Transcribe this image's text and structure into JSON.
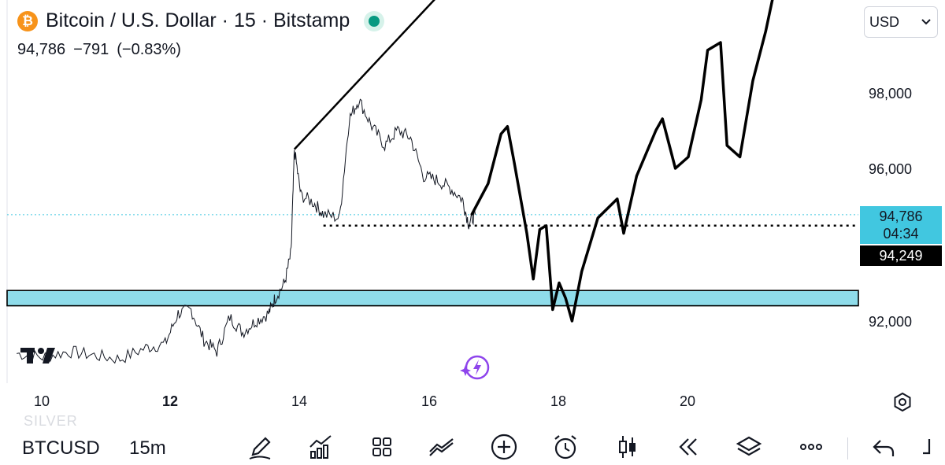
{
  "header": {
    "title": "Bitcoin / U.S. Dollar · 15 · Bitstamp",
    "coin_symbol": "₿",
    "price": "94,786",
    "change": "−791",
    "change_pct": "(−0.83%)",
    "live_color": "#089981"
  },
  "currency_select": {
    "value": "USD",
    "icon": "chevron-down-icon"
  },
  "price_axis": {
    "labels": [
      "98,000",
      "96,000",
      "92,000"
    ],
    "current_price": "94,786",
    "countdown": "04:34",
    "hline_price": "94,249",
    "current_tag_color": "#41c7e0"
  },
  "time_axis": {
    "labels": [
      "10",
      "12",
      "14",
      "16",
      "18",
      "20"
    ],
    "bold_label": "12"
  },
  "watermark": "SILVER",
  "bottom_bar": {
    "symbol": "BTCUSD",
    "interval": "15m",
    "tools": [
      "drawing-pen-icon",
      "indicators-icon",
      "layout-grid-icon",
      "compare-icon",
      "add-circle-icon",
      "alarm-icon",
      "candles-icon",
      "replay-icon",
      "layers-icon",
      "more-icon",
      "undo-icon"
    ]
  },
  "chart_data": {
    "type": "line",
    "symbol": "BTCUSD",
    "xlabel": "",
    "ylabel": "",
    "price_series": [
      [
        9.6,
        91.15
      ],
      [
        10.0,
        91.05
      ],
      [
        10.4,
        91.2
      ],
      [
        10.8,
        91.1
      ],
      [
        11.2,
        91.0
      ],
      [
        11.6,
        91.3
      ],
      [
        11.9,
        91.4
      ],
      [
        12.1,
        92.2
      ],
      [
        12.3,
        92.3
      ],
      [
        12.5,
        91.5
      ],
      [
        12.7,
        91.2
      ],
      [
        12.9,
        92.1
      ],
      [
        13.1,
        91.7
      ],
      [
        13.3,
        92.0
      ],
      [
        13.5,
        92.2
      ],
      [
        13.6,
        92.6
      ],
      [
        13.75,
        93.0
      ],
      [
        13.85,
        93.8
      ],
      [
        13.9,
        96.5
      ],
      [
        14.0,
        95.3
      ],
      [
        14.2,
        95.1
      ],
      [
        14.35,
        94.8
      ],
      [
        14.6,
        94.7
      ],
      [
        14.75,
        97.3
      ],
      [
        14.9,
        97.8
      ],
      [
        15.1,
        97.1
      ],
      [
        15.3,
        96.6
      ],
      [
        15.5,
        97.0
      ],
      [
        15.7,
        96.8
      ],
      [
        15.9,
        95.8
      ],
      [
        16.1,
        95.7
      ],
      [
        16.3,
        95.5
      ],
      [
        16.5,
        95.2
      ],
      [
        16.6,
        94.55
      ],
      [
        16.7,
        94.79
      ]
    ],
    "drawn_projection": [
      [
        16.65,
        94.8
      ],
      [
        16.9,
        95.6
      ],
      [
        17.1,
        96.9
      ],
      [
        17.2,
        97.1
      ],
      [
        17.3,
        96.2
      ],
      [
        17.5,
        94.3
      ],
      [
        17.6,
        93.1
      ],
      [
        17.7,
        94.4
      ],
      [
        17.8,
        94.5
      ],
      [
        17.9,
        92.3
      ],
      [
        18.0,
        93.0
      ],
      [
        18.1,
        92.6
      ],
      [
        18.2,
        92.0
      ],
      [
        18.35,
        93.3
      ],
      [
        18.6,
        94.7
      ],
      [
        18.9,
        95.2
      ],
      [
        19.0,
        94.3
      ],
      [
        19.2,
        95.8
      ],
      [
        19.5,
        97.0
      ],
      [
        19.6,
        97.3
      ],
      [
        19.8,
        96.0
      ],
      [
        20.0,
        96.3
      ],
      [
        20.2,
        97.8
      ],
      [
        20.3,
        99.1
      ],
      [
        20.5,
        99.3
      ],
      [
        20.6,
        96.6
      ],
      [
        20.8,
        96.3
      ],
      [
        21.0,
        98.3
      ],
      [
        21.2,
        99.6
      ],
      [
        21.4,
        101.2
      ]
    ],
    "trendline": [
      [
        13.9,
        96.5
      ],
      [
        16.5,
        101.2
      ]
    ],
    "support_level": 94.5,
    "support_zone": [
      92.4,
      92.8
    ],
    "current_price": 94.786,
    "ylim": [
      90.5,
      101.2
    ],
    "xlim": [
      9.6,
      22.0
    ]
  }
}
